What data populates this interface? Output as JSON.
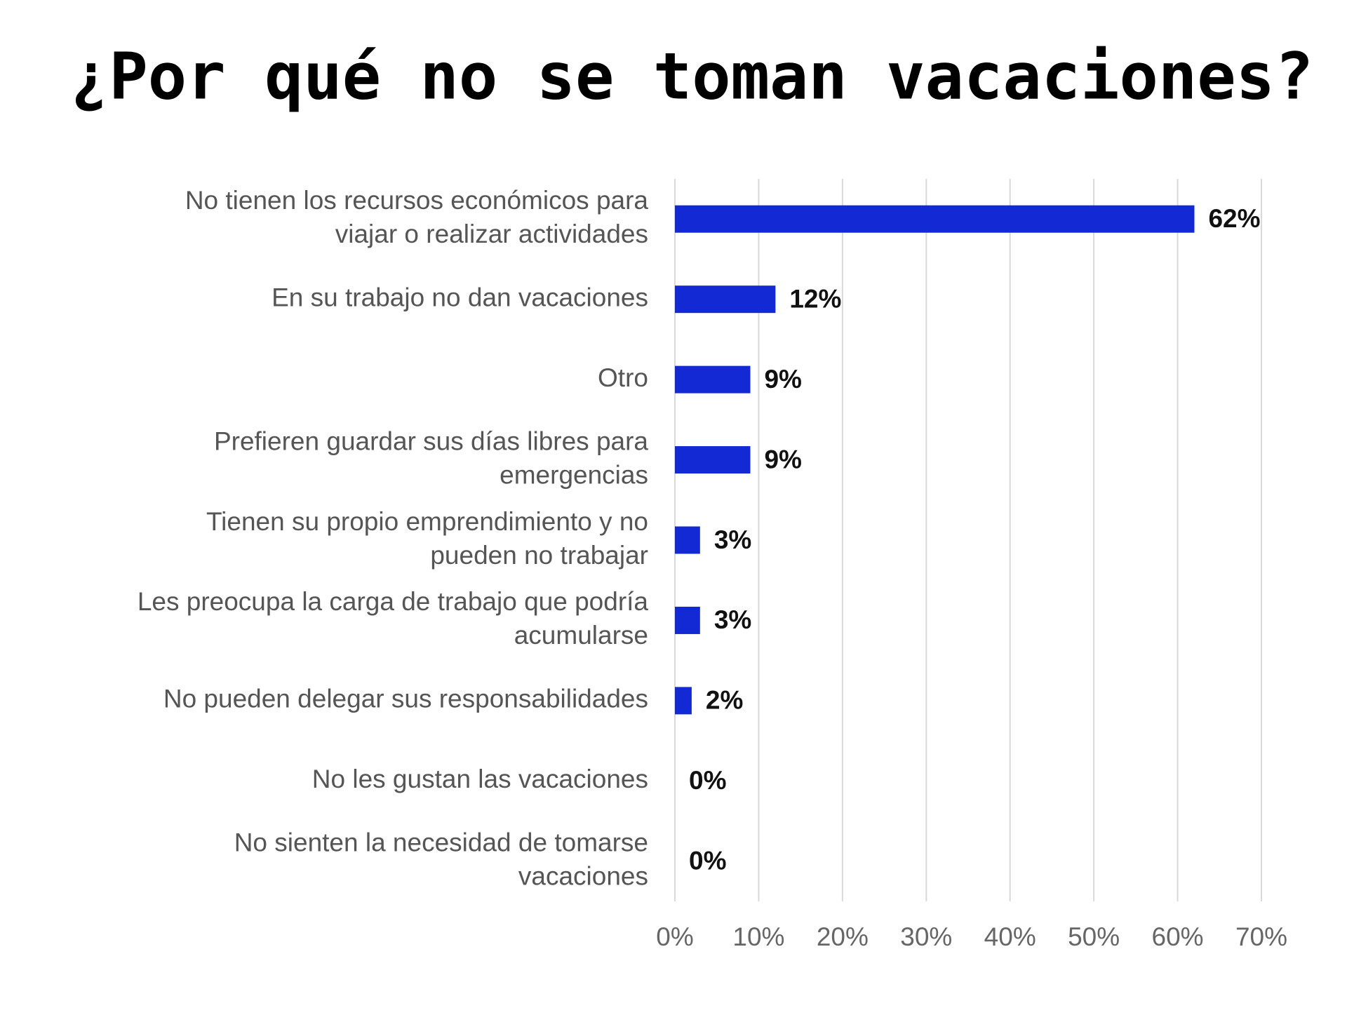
{
  "chart_data": {
    "type": "barh",
    "title": "¿Por qué no se toman vacaciones?",
    "categories": [
      [
        "No tienen los recursos económicos para",
        "viajar o realizar actividades"
      ],
      [
        "En su trabajo no dan vacaciones"
      ],
      [
        "Otro"
      ],
      [
        "Prefieren guardar sus días libres para",
        "emergencias"
      ],
      [
        "Tienen su propio emprendimiento y no",
        "pueden no trabajar"
      ],
      [
        "Les preocupa la carga de trabajo que podría",
        "acumularse"
      ],
      [
        "No pueden delegar sus responsabilidades"
      ],
      [
        "No les gustan las vacaciones"
      ],
      [
        "No sienten la necesidad de tomarse",
        "vacaciones"
      ]
    ],
    "values": [
      62,
      12,
      9,
      9,
      3,
      3,
      2,
      0,
      0
    ],
    "value_labels": [
      "62%",
      "12%",
      "9%",
      "9%",
      "3%",
      "3%",
      "2%",
      "0%",
      "0%"
    ],
    "color": "#1229d4",
    "xlim": [
      0,
      70
    ],
    "xticks": [
      {
        "value": 0,
        "label": "0%"
      },
      {
        "value": 10,
        "label": "10%"
      },
      {
        "value": 20,
        "label": "20%"
      },
      {
        "value": 30,
        "label": "30%"
      },
      {
        "value": 40,
        "label": "40%"
      },
      {
        "value": 50,
        "label": "50%"
      },
      {
        "value": 60,
        "label": "60%"
      },
      {
        "value": 70,
        "label": "70%"
      }
    ],
    "grid": true
  }
}
